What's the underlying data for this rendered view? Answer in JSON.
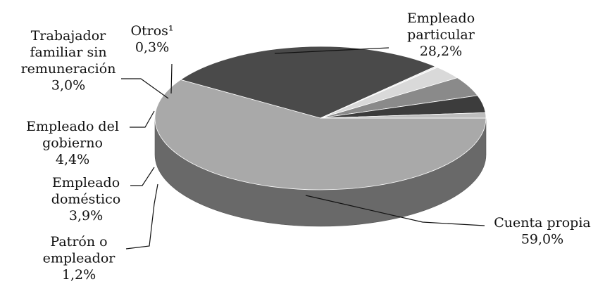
{
  "chart_data": {
    "type": "pie",
    "title": "",
    "slices": [
      {
        "label_lines": [
          "Cuenta propia"
        ],
        "value": 59.0,
        "value_label": "59,0%",
        "color": "#a9a9a9"
      },
      {
        "label_lines": [
          "Empleado",
          "particular"
        ],
        "value": 28.2,
        "value_label": "28,2%",
        "color": "#4a4a4a"
      },
      {
        "label_lines": [
          "Otros¹"
        ],
        "value": 0.3,
        "value_label": "0,3%",
        "color": "#efefef"
      },
      {
        "label_lines": [
          "Trabajador",
          "familiar sin",
          "remuneración"
        ],
        "value": 3.0,
        "value_label": "3,0%",
        "color": "#d9d9d9"
      },
      {
        "label_lines": [
          "Empleado del",
          "gobierno"
        ],
        "value": 4.4,
        "value_label": "4,4%",
        "color": "#8a8a8a"
      },
      {
        "label_lines": [
          "Empleado",
          "doméstico"
        ],
        "value": 3.9,
        "value_label": "3,9%",
        "color": "#3c3c3c"
      },
      {
        "label_lines": [
          "Patrón o",
          "empleador"
        ],
        "value": 1.2,
        "value_label": "1,2%",
        "color": "#bdbdbd"
      }
    ]
  }
}
